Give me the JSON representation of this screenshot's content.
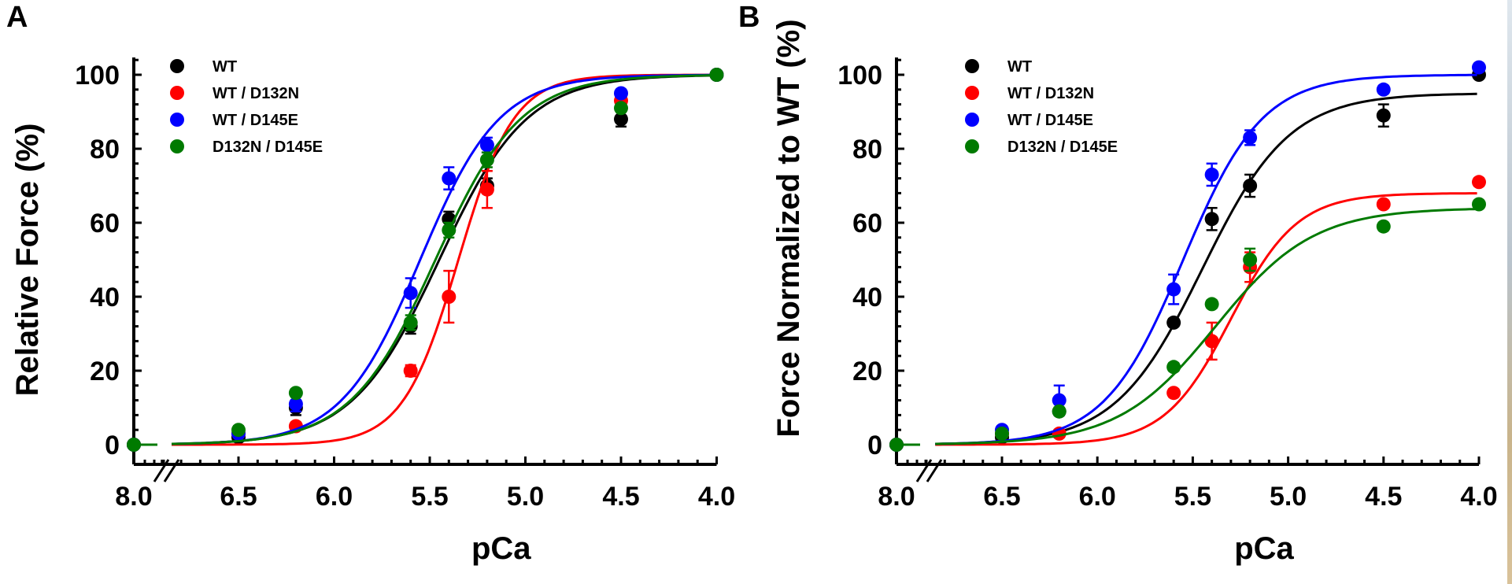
{
  "chart_data": [
    {
      "panel": "A",
      "type": "scatter",
      "title": "",
      "xlabel": "pCa",
      "ylabel": "Relative Force (%)",
      "x_ticks": [
        "8.0",
        "6.5",
        "6.0",
        "5.5",
        "5.0",
        "4.5",
        "4.0"
      ],
      "y_ticks": [
        "0",
        "20",
        "40",
        "60",
        "80",
        "100"
      ],
      "xlim": [
        8.0,
        4.0
      ],
      "ylim": [
        0,
        100
      ],
      "x_axis_break": true,
      "grid": false,
      "legend_position": "top-left",
      "series": [
        {
          "name": "WT",
          "color": "#000000",
          "points": [
            {
              "x": 8.0,
              "y": 0,
              "err": 0
            },
            {
              "x": 6.5,
              "y": 2,
              "err": 1
            },
            {
              "x": 6.2,
              "y": 10,
              "err": 2
            },
            {
              "x": 5.6,
              "y": 32,
              "err": 2
            },
            {
              "x": 5.4,
              "y": 61,
              "err": 2
            },
            {
              "x": 5.2,
              "y": 70,
              "err": 2
            },
            {
              "x": 4.5,
              "y": 88,
              "err": 2
            },
            {
              "x": 4.0,
              "y": 100,
              "err": 0
            }
          ],
          "fit": {
            "pCa50": 5.45,
            "nH": 1.9,
            "max": 100
          }
        },
        {
          "name": "WT / D132N",
          "color": "#ff0000",
          "points": [
            {
              "x": 8.0,
              "y": 0,
              "err": 0
            },
            {
              "x": 6.5,
              "y": 3,
              "err": 1
            },
            {
              "x": 6.2,
              "y": 5,
              "err": 1
            },
            {
              "x": 5.6,
              "y": 20,
              "err": 1.5
            },
            {
              "x": 5.4,
              "y": 40,
              "err": 7
            },
            {
              "x": 5.2,
              "y": 69,
              "err": 5
            },
            {
              "x": 4.5,
              "y": 93,
              "err": 1
            },
            {
              "x": 4.0,
              "y": 100,
              "err": 0
            }
          ],
          "fit": {
            "pCa50": 5.35,
            "nH": 3.0,
            "max": 100
          }
        },
        {
          "name": "WT / D145E",
          "color": "#0000ff",
          "points": [
            {
              "x": 8.0,
              "y": 0,
              "err": 0
            },
            {
              "x": 6.5,
              "y": 3,
              "err": 1
            },
            {
              "x": 6.2,
              "y": 11,
              "err": 2
            },
            {
              "x": 5.6,
              "y": 41,
              "err": 4
            },
            {
              "x": 5.4,
              "y": 72,
              "err": 3
            },
            {
              "x": 5.2,
              "y": 81,
              "err": 2
            },
            {
              "x": 4.5,
              "y": 95,
              "err": 1
            },
            {
              "x": 4.0,
              "y": 100,
              "err": 0
            }
          ],
          "fit": {
            "pCa50": 5.55,
            "nH": 2.1,
            "max": 100
          }
        },
        {
          "name": "D132N / D145E",
          "color": "#007a00",
          "points": [
            {
              "x": 8.0,
              "y": 0,
              "err": 0
            },
            {
              "x": 6.5,
              "y": 4,
              "err": 1
            },
            {
              "x": 6.2,
              "y": 14,
              "err": 1
            },
            {
              "x": 5.6,
              "y": 33,
              "err": 2
            },
            {
              "x": 5.4,
              "y": 58,
              "err": 2
            },
            {
              "x": 5.2,
              "y": 77,
              "err": 2
            },
            {
              "x": 4.5,
              "y": 91,
              "err": 1
            },
            {
              "x": 4.0,
              "y": 100,
              "err": 0
            }
          ],
          "fit": {
            "pCa50": 5.47,
            "nH": 1.95,
            "max": 100
          }
        }
      ]
    },
    {
      "panel": "B",
      "type": "scatter",
      "title": "",
      "xlabel": "pCa",
      "ylabel": "Force Normalized to WT (%)",
      "x_ticks": [
        "8.0",
        "6.5",
        "6.0",
        "5.5",
        "5.0",
        "4.5",
        "4.0"
      ],
      "y_ticks": [
        "0",
        "20",
        "40",
        "60",
        "80",
        "100"
      ],
      "xlim": [
        8.0,
        4.0
      ],
      "ylim": [
        0,
        100
      ],
      "x_axis_break": true,
      "grid": false,
      "legend_position": "top-left",
      "series": [
        {
          "name": "WT",
          "color": "#000000",
          "points": [
            {
              "x": 8.0,
              "y": 0,
              "err": 0
            },
            {
              "x": 6.5,
              "y": 2,
              "err": 1
            },
            {
              "x": 6.2,
              "y": 9,
              "err": 1
            },
            {
              "x": 5.6,
              "y": 33,
              "err": 1
            },
            {
              "x": 5.4,
              "y": 61,
              "err": 3
            },
            {
              "x": 5.2,
              "y": 70,
              "err": 3
            },
            {
              "x": 4.5,
              "y": 89,
              "err": 3
            },
            {
              "x": 4.0,
              "y": 100,
              "err": 0
            }
          ],
          "fit": {
            "pCa50": 5.45,
            "nH": 1.9,
            "max": 95
          }
        },
        {
          "name": "WT / D132N",
          "color": "#ff0000",
          "points": [
            {
              "x": 8.0,
              "y": 0,
              "err": 0
            },
            {
              "x": 6.5,
              "y": 3,
              "err": 1
            },
            {
              "x": 6.2,
              "y": 3,
              "err": 1
            },
            {
              "x": 5.6,
              "y": 14,
              "err": 1
            },
            {
              "x": 5.4,
              "y": 28,
              "err": 5
            },
            {
              "x": 5.2,
              "y": 48,
              "err": 4
            },
            {
              "x": 4.5,
              "y": 65,
              "err": 1
            },
            {
              "x": 4.0,
              "y": 71,
              "err": 1
            }
          ],
          "fit": {
            "pCa50": 5.3,
            "nH": 2.5,
            "max": 68
          }
        },
        {
          "name": "WT / D145E",
          "color": "#0000ff",
          "points": [
            {
              "x": 8.0,
              "y": 0,
              "err": 0
            },
            {
              "x": 6.5,
              "y": 4,
              "err": 1
            },
            {
              "x": 6.2,
              "y": 12,
              "err": 4
            },
            {
              "x": 5.6,
              "y": 42,
              "err": 4
            },
            {
              "x": 5.4,
              "y": 73,
              "err": 3
            },
            {
              "x": 5.2,
              "y": 83,
              "err": 2
            },
            {
              "x": 4.5,
              "y": 96,
              "err": 1
            },
            {
              "x": 4.0,
              "y": 102,
              "err": 1
            }
          ],
          "fit": {
            "pCa50": 5.55,
            "nH": 2.1,
            "max": 100
          }
        },
        {
          "name": "D132N / D145E",
          "color": "#007a00",
          "points": [
            {
              "x": 8.0,
              "y": 0,
              "err": 0
            },
            {
              "x": 6.5,
              "y": 3,
              "err": 1
            },
            {
              "x": 6.2,
              "y": 9,
              "err": 1
            },
            {
              "x": 5.6,
              "y": 21,
              "err": 1
            },
            {
              "x": 5.4,
              "y": 38,
              "err": 1
            },
            {
              "x": 5.2,
              "y": 50,
              "err": 3
            },
            {
              "x": 4.5,
              "y": 59,
              "err": 1
            },
            {
              "x": 4.0,
              "y": 65,
              "err": 1
            }
          ],
          "fit": {
            "pCa50": 5.38,
            "nH": 1.7,
            "max": 64
          }
        }
      ]
    }
  ],
  "panels": {
    "A": {
      "label": "A"
    },
    "B": {
      "label": "B"
    }
  }
}
